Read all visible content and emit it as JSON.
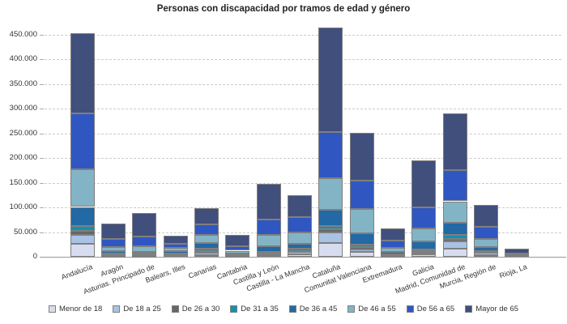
{
  "title": "Personas con discapacidad por tramos de edad y género",
  "colors": {
    "background": "#ffffff",
    "segment_border": "#7f7f7f",
    "gridline": "#cccccc",
    "axis_line": "#9a9a9a",
    "title_text": "#222222",
    "label_text": "#333333"
  },
  "chart_data": {
    "type": "bar",
    "stacked": true,
    "title": "Personas con discapacidad por tramos de edad y género",
    "xlabel": "",
    "ylabel": "",
    "ylim": [
      0,
      450000
    ],
    "ytick_step": 50000,
    "ytick_labels": [
      "0",
      "50.000",
      "100.000",
      "150.000",
      "200.000",
      "250.000",
      "300.000",
      "350.000",
      "400.000",
      "450.000"
    ],
    "grid": "horizontal-dashed",
    "legend_position": "bottom",
    "categories": [
      "Andalucía",
      "Aragón",
      "Asturias. Principado de",
      "Balears, Illes",
      "Canarias",
      "Cantabria",
      "Castilla y León",
      "Castilla - La Mancha",
      "Cataluña",
      "Comunitat Valenciana",
      "Extremadura",
      "Galicia",
      "Madrid, Comunidad de",
      "Murcia, Región de",
      "Rioja, La"
    ],
    "series": [
      {
        "name": "Menor de 18",
        "color": "#d7ddef",
        "values": [
          26000,
          2000,
          2000,
          3000,
          3500,
          1200,
          2500,
          5500,
          28500,
          9500,
          2300,
          5000,
          17000,
          3500,
          500
        ]
      },
      {
        "name": "De 18 a 25",
        "color": "#a9c3e5",
        "values": [
          18000,
          2000,
          1500,
          2000,
          5500,
          1000,
          2000,
          4500,
          20000,
          4500,
          1500,
          4000,
          14000,
          4500,
          500
        ]
      },
      {
        "name": "De 26 a 30",
        "color": "#666666",
        "values": [
          8000,
          1000,
          1000,
          800,
          3000,
          500,
          2200,
          2000,
          8000,
          5000,
          700,
          2600,
          5500,
          1600,
          300
        ]
      },
      {
        "name": "De 31 a 35",
        "color": "#1291ad",
        "values": [
          11000,
          1500,
          1500,
          1200,
          4500,
          700,
          3300,
          4500,
          6500,
          5000,
          1000,
          2800,
          8000,
          1700,
          300
        ]
      },
      {
        "name": "De 36 a 45",
        "color": "#2269a5",
        "values": [
          38000,
          5500,
          4000,
          4500,
          11000,
          3300,
          11000,
          10500,
          33000,
          23000,
          4500,
          16500,
          25000,
          9000,
          1000
        ]
      },
      {
        "name": "De 46 a 55",
        "color": "#83b4c6",
        "values": [
          76000,
          8000,
          12000,
          6500,
          17500,
          5600,
          23000,
          23000,
          64000,
          49500,
          7800,
          26500,
          43000,
          16500,
          1200
        ]
      },
      {
        "name": "De 56 a 65",
        "color": "#3057c1",
        "values": [
          114000,
          16500,
          19500,
          9000,
          21000,
          9700,
          32000,
          30000,
          93000,
          58000,
          14500,
          42000,
          62500,
          24200,
          2700
        ]
      },
      {
        "name": "Mayor de 65",
        "color": "#414f7d",
        "values": [
          163000,
          31000,
          47000,
          16000,
          32000,
          22000,
          72000,
          45000,
          212000,
          97500,
          25700,
          95600,
          115000,
          44000,
          9500
        ]
      }
    ]
  }
}
